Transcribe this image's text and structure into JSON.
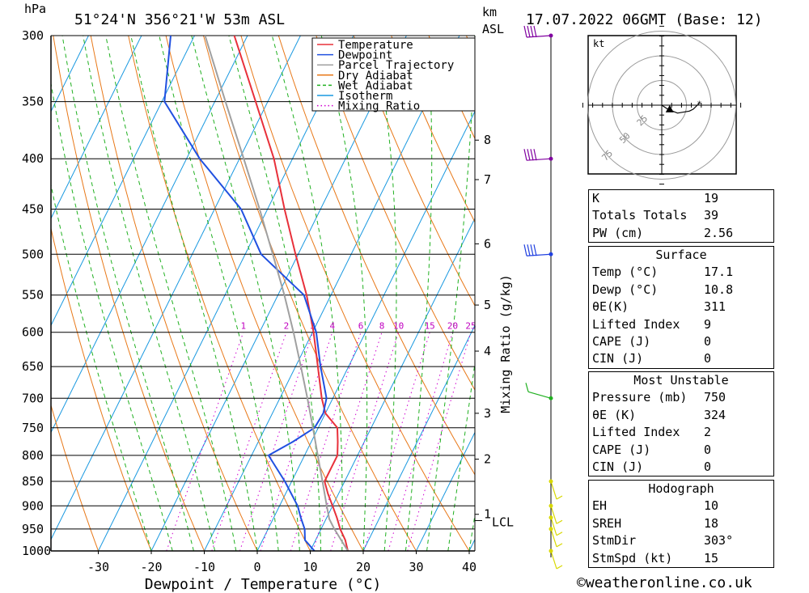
{
  "header": {
    "hpa_unit": "hPa",
    "location": "51°24'N  356°21'W  53m  ASL",
    "km_unit": "km",
    "asl_unit": "ASL",
    "datetime": "17.07.2022  06GMT  (Base: 12)"
  },
  "chart_data": {
    "type": "line",
    "xlabel": "Dewpoint / Temperature (°C)",
    "ylabel": "hPa",
    "xlim": [
      -40,
      40
    ],
    "y_scale": "log (pressure)",
    "ylim": [
      1000,
      300
    ],
    "x_ticks": [
      -30,
      -20,
      -10,
      0,
      10,
      20,
      30,
      40
    ],
    "pressure_ticks": [
      300,
      350,
      400,
      450,
      500,
      550,
      600,
      650,
      700,
      750,
      800,
      850,
      900,
      950,
      1000
    ],
    "skew_deg_per_log_unit": 40,
    "height_km_ticks": [
      {
        "label": "8",
        "p": 383
      },
      {
        "label": "7",
        "p": 420
      },
      {
        "label": "6",
        "p": 488
      },
      {
        "label": "5",
        "p": 563
      },
      {
        "label": "4",
        "p": 627
      },
      {
        "label": "3",
        "p": 725
      },
      {
        "label": "2",
        "p": 807
      },
      {
        "label": "1",
        "p": 918
      }
    ],
    "lcl": {
      "label": "LCL",
      "p": 928
    },
    "mixing_ratio_label": "Mixing Ratio (g/kg)",
    "mixing_ratio_values": [
      "1",
      "2",
      "3",
      "4",
      "6",
      "8",
      "10",
      "15",
      "20",
      "25"
    ],
    "mixing_ratio_label_p": 600,
    "legend": {
      "position": "top-right",
      "entries": [
        {
          "label": "Temperature",
          "color": "#e8303a",
          "style": "solid"
        },
        {
          "label": "Dewpoint",
          "color": "#2050e0",
          "style": "solid"
        },
        {
          "label": "Parcel Trajectory",
          "color": "#a0a0a0",
          "style": "solid"
        },
        {
          "label": "Dry Adiabat",
          "color": "#e87818",
          "style": "solid"
        },
        {
          "label": "Wet Adiabat",
          "color": "#20b020",
          "style": "dashed"
        },
        {
          "label": "Isotherm",
          "color": "#1898e0",
          "style": "solid"
        },
        {
          "label": "Mixing Ratio",
          "color": "#d000d0",
          "style": "dotted"
        }
      ]
    },
    "series": [
      {
        "name": "Temperature",
        "color": "#e8303a",
        "points": [
          {
            "p": 1000,
            "t": 17.1
          },
          {
            "p": 975,
            "t": 15.6
          },
          {
            "p": 950,
            "t": 13.6
          },
          {
            "p": 925,
            "t": 11.9
          },
          {
            "p": 900,
            "t": 10.0
          },
          {
            "p": 875,
            "t": 8.0
          },
          {
            "p": 850,
            "t": 6.2
          },
          {
            "p": 825,
            "t": 6.2
          },
          {
            "p": 800,
            "t": 6.2
          },
          {
            "p": 775,
            "t": 5.0
          },
          {
            "p": 750,
            "t": 3.6
          },
          {
            "p": 725,
            "t": 0.0
          },
          {
            "p": 700,
            "t": -2.1
          },
          {
            "p": 650,
            "t": -5.8
          },
          {
            "p": 600,
            "t": -9.8
          },
          {
            "p": 550,
            "t": -14.6
          },
          {
            "p": 500,
            "t": -20.5
          },
          {
            "p": 450,
            "t": -26.8
          },
          {
            "p": 400,
            "t": -33.5
          },
          {
            "p": 350,
            "t": -42.3
          },
          {
            "p": 300,
            "t": -52.5
          }
        ]
      },
      {
        "name": "Dewpoint",
        "color": "#2050e0",
        "points": [
          {
            "p": 1000,
            "t": 10.8
          },
          {
            "p": 975,
            "t": 8.0
          },
          {
            "p": 950,
            "t": 6.9
          },
          {
            "p": 925,
            "t": 5.1
          },
          {
            "p": 900,
            "t": 3.4
          },
          {
            "p": 850,
            "t": -1.3
          },
          {
            "p": 800,
            "t": -6.8
          },
          {
            "p": 775,
            "t": -3.5
          },
          {
            "p": 750,
            "t": -0.7
          },
          {
            "p": 725,
            "t": -0.4
          },
          {
            "p": 700,
            "t": -1.2
          },
          {
            "p": 650,
            "t": -5.3
          },
          {
            "p": 600,
            "t": -9.3
          },
          {
            "p": 550,
            "t": -15.1
          },
          {
            "p": 500,
            "t": -27.0
          },
          {
            "p": 450,
            "t": -35.0
          },
          {
            "p": 400,
            "t": -47.5
          },
          {
            "p": 350,
            "t": -59.5
          },
          {
            "p": 300,
            "t": -64.5
          }
        ]
      },
      {
        "name": "Parcel Trajectory",
        "color": "#a0a0a0",
        "points": [
          {
            "p": 1000,
            "t": 17.1
          },
          {
            "p": 950,
            "t": 12.5
          },
          {
            "p": 928,
            "t": 10.6
          },
          {
            "p": 900,
            "t": 8.9
          },
          {
            "p": 850,
            "t": 5.8
          },
          {
            "p": 800,
            "t": 2.5
          },
          {
            "p": 750,
            "t": -1.0
          },
          {
            "p": 700,
            "t": -4.8
          },
          {
            "p": 650,
            "t": -9.0
          },
          {
            "p": 600,
            "t": -13.6
          },
          {
            "p": 550,
            "t": -18.8
          },
          {
            "p": 500,
            "t": -24.8
          },
          {
            "p": 450,
            "t": -31.5
          },
          {
            "p": 400,
            "t": -39.2
          },
          {
            "p": 350,
            "t": -48.0
          },
          {
            "p": 300,
            "t": -58.0
          }
        ]
      }
    ],
    "wind_profile": [
      {
        "p": 300,
        "color": "#8000a0"
      },
      {
        "p": 400,
        "color": "#8000a0"
      },
      {
        "p": 500,
        "color": "#2040e0"
      },
      {
        "p": 700,
        "color": "#20b020"
      },
      {
        "p": 850,
        "color": "#d8d800"
      },
      {
        "p": 900,
        "color": "#d8d800"
      },
      {
        "p": 925,
        "color": "#d8d800"
      },
      {
        "p": 950,
        "color": "#d8d800"
      },
      {
        "p": 1000,
        "color": "#d8d800"
      }
    ],
    "hodograph": {
      "unit_label": "kt",
      "ring_labels": [
        "25",
        "50",
        "75"
      ],
      "trace_kt": [
        [
          0,
          0
        ],
        [
          3,
          -2
        ],
        [
          8,
          -4
        ],
        [
          14,
          -3
        ],
        [
          16,
          -2
        ],
        [
          19,
          1
        ]
      ],
      "storm_motion_kt": [
        4,
        -2
      ]
    }
  },
  "indices": {
    "general": [
      {
        "label": "K",
        "value": "19"
      },
      {
        "label": "Totals Totals",
        "value": "39"
      },
      {
        "label": "PW (cm)",
        "value": "2.56"
      }
    ],
    "surface": {
      "title": "Surface",
      "rows": [
        {
          "label": "Temp (°C)",
          "value": "17.1"
        },
        {
          "label": "Dewp (°C)",
          "value": "10.8"
        },
        {
          "label": "θE(K)",
          "value": "311"
        },
        {
          "label": "Lifted Index",
          "value": "9"
        },
        {
          "label": "CAPE (J)",
          "value": "0"
        },
        {
          "label": "CIN (J)",
          "value": "0"
        }
      ]
    },
    "most_unstable": {
      "title": "Most Unstable",
      "rows": [
        {
          "label": "Pressure (mb)",
          "value": "750"
        },
        {
          "label": "θE (K)",
          "value": "324"
        },
        {
          "label": "Lifted Index",
          "value": "2"
        },
        {
          "label": "CAPE (J)",
          "value": "0"
        },
        {
          "label": "CIN (J)",
          "value": "0"
        }
      ]
    },
    "hodograph": {
      "title": "Hodograph",
      "rows": [
        {
          "label": "EH",
          "value": "10"
        },
        {
          "label": "SREH",
          "value": "18"
        },
        {
          "label": "StmDir",
          "value": "303°"
        },
        {
          "label": "StmSpd (kt)",
          "value": "15"
        }
      ]
    }
  },
  "footer": {
    "credit": "©weatheronline.co.uk"
  }
}
